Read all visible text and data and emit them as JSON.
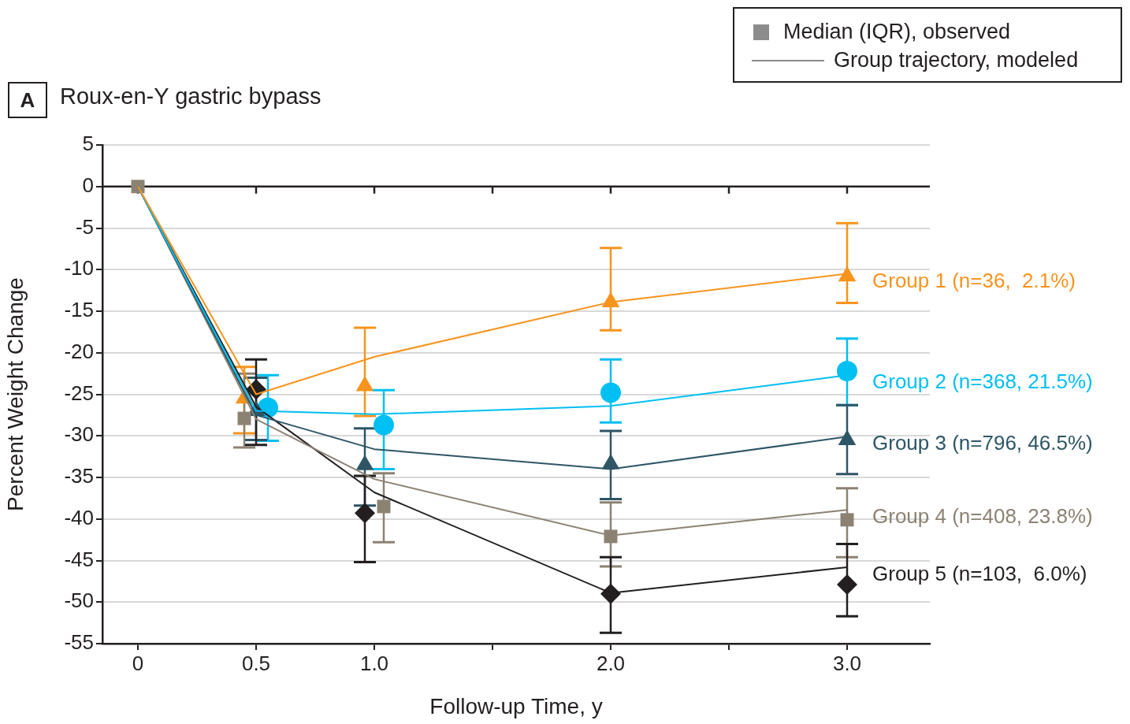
{
  "chart_data": {
    "type": "line",
    "title": "Roux-en-Y gastric bypass",
    "xlabel": "Follow-up Time, y",
    "ylabel": "Percent Weight Change",
    "annotations": [
      "A",
      "Median (IQR), observed",
      "Group trajectory, modeled"
    ],
    "xlim": [
      -0.15,
      3.35
    ],
    "xticks": [
      0,
      0.5,
      {
        "value": 1,
        "label": "1.0"
      },
      {
        "value": 1.5,
        "label": null
      },
      {
        "value": 2,
        "label": "2.0"
      },
      {
        "value": 2.5,
        "label": null
      },
      {
        "value": 3,
        "label": "3.0"
      }
    ],
    "ylim": [
      -55,
      5
    ],
    "yticks": [
      -55,
      -50,
      -45,
      -40,
      -35,
      -30,
      -25,
      -20,
      -15,
      -10,
      -5,
      0,
      5
    ],
    "grid": "y",
    "ref_lines": [
      {
        "axis": "y",
        "value": 0,
        "color": "#231f20"
      }
    ],
    "series": [
      {
        "name": "Group 1 (n=36,  2.1%)",
        "type": "line",
        "color": "#f7941d",
        "marker": "none",
        "x": [
          0,
          0.5,
          1,
          2,
          3
        ],
        "values": [
          0,
          -25,
          -20.5,
          -13.9,
          -10.5
        ]
      },
      {
        "name": "Group 2 (n=368, 21.5%)",
        "type": "line",
        "color": "#00bff3",
        "marker": "none",
        "x": [
          0,
          0.5,
          1,
          2,
          3
        ],
        "values": [
          0,
          -27,
          -27.4,
          -26.4,
          -22.7
        ]
      },
      {
        "name": "Group 3 (n=796, 46.5%)",
        "type": "line",
        "color": "#2d5566",
        "marker": "none",
        "x": [
          0,
          0.5,
          1,
          2,
          3
        ],
        "values": [
          0,
          -27.5,
          -31.6,
          -34,
          -30.1
        ]
      },
      {
        "name": "Group 4 (n=408, 23.8%)",
        "type": "line",
        "color": "#8c8272",
        "marker": "none",
        "x": [
          0,
          0.5,
          1,
          2,
          3
        ],
        "values": [
          0,
          -28,
          -35.2,
          -42,
          -38.9
        ]
      },
      {
        "name": "Group 5 (n=103,  6.0%)",
        "type": "line",
        "color": "#231f20",
        "marker": "none",
        "x": [
          0,
          0.5,
          1,
          2,
          3
        ],
        "values": [
          0,
          -26.5,
          -36.8,
          -48.9,
          -45.8
        ]
      },
      {
        "type": "scatter",
        "color": "#f7941d",
        "marker": "triangle",
        "x": [
          0.45,
          0.96,
          2,
          3
        ],
        "values": [
          -25.5,
          -24,
          -13.9,
          -10.8
        ],
        "errors": [
          [
            -29.7,
            -21.7
          ],
          [
            -27.6,
            -17
          ],
          [
            -17.3,
            -7.4
          ],
          [
            -14,
            -4.4
          ]
        ]
      },
      {
        "type": "scatter",
        "color": "#00bff3",
        "marker": "circle",
        "x": [
          0.55,
          1.04,
          2,
          3
        ],
        "values": [
          -26.6,
          -28.7,
          -24.8,
          -22.2
        ],
        "errors": [
          [
            -30.6,
            -22.7
          ],
          [
            -34,
            -24.5
          ],
          [
            -28.4,
            -20.8
          ],
          [
            -26.3,
            -18.3
          ]
        ]
      },
      {
        "type": "scatter",
        "color": "#2d5566",
        "marker": "triangle",
        "x": [
          0.5,
          0.96,
          2,
          3
        ],
        "values": [
          -27,
          -33.5,
          -33.4,
          -30.5
        ],
        "errors": [
          [
            -30.5,
            -23
          ],
          [
            -38.4,
            -29.1
          ],
          [
            -37.6,
            -29.4
          ],
          [
            -34.6,
            -26.3
          ]
        ]
      },
      {
        "type": "scatter",
        "color": "#8c8272",
        "marker": "square",
        "x": [
          0,
          0.45,
          1.04,
          2,
          3
        ],
        "values": [
          0,
          -27.9,
          -38.5,
          -42.1,
          -40.1
        ],
        "errors": [
          null,
          [
            -31.4,
            -22.5
          ],
          [
            -42.8,
            -34.5
          ],
          [
            -45.7,
            -38
          ],
          [
            -44.6,
            -36.3
          ]
        ]
      },
      {
        "type": "scatter",
        "color": "#231f20",
        "marker": "diamond",
        "x": [
          0.5,
          0.96,
          2,
          3
        ],
        "values": [
          -24.4,
          -39.3,
          -49,
          -47.9
        ],
        "errors": [
          [
            -31.1,
            -20.8
          ],
          [
            -45.2,
            -34.8
          ],
          [
            -53.7,
            -44.6
          ],
          [
            -51.7,
            -43
          ]
        ]
      }
    ]
  }
}
